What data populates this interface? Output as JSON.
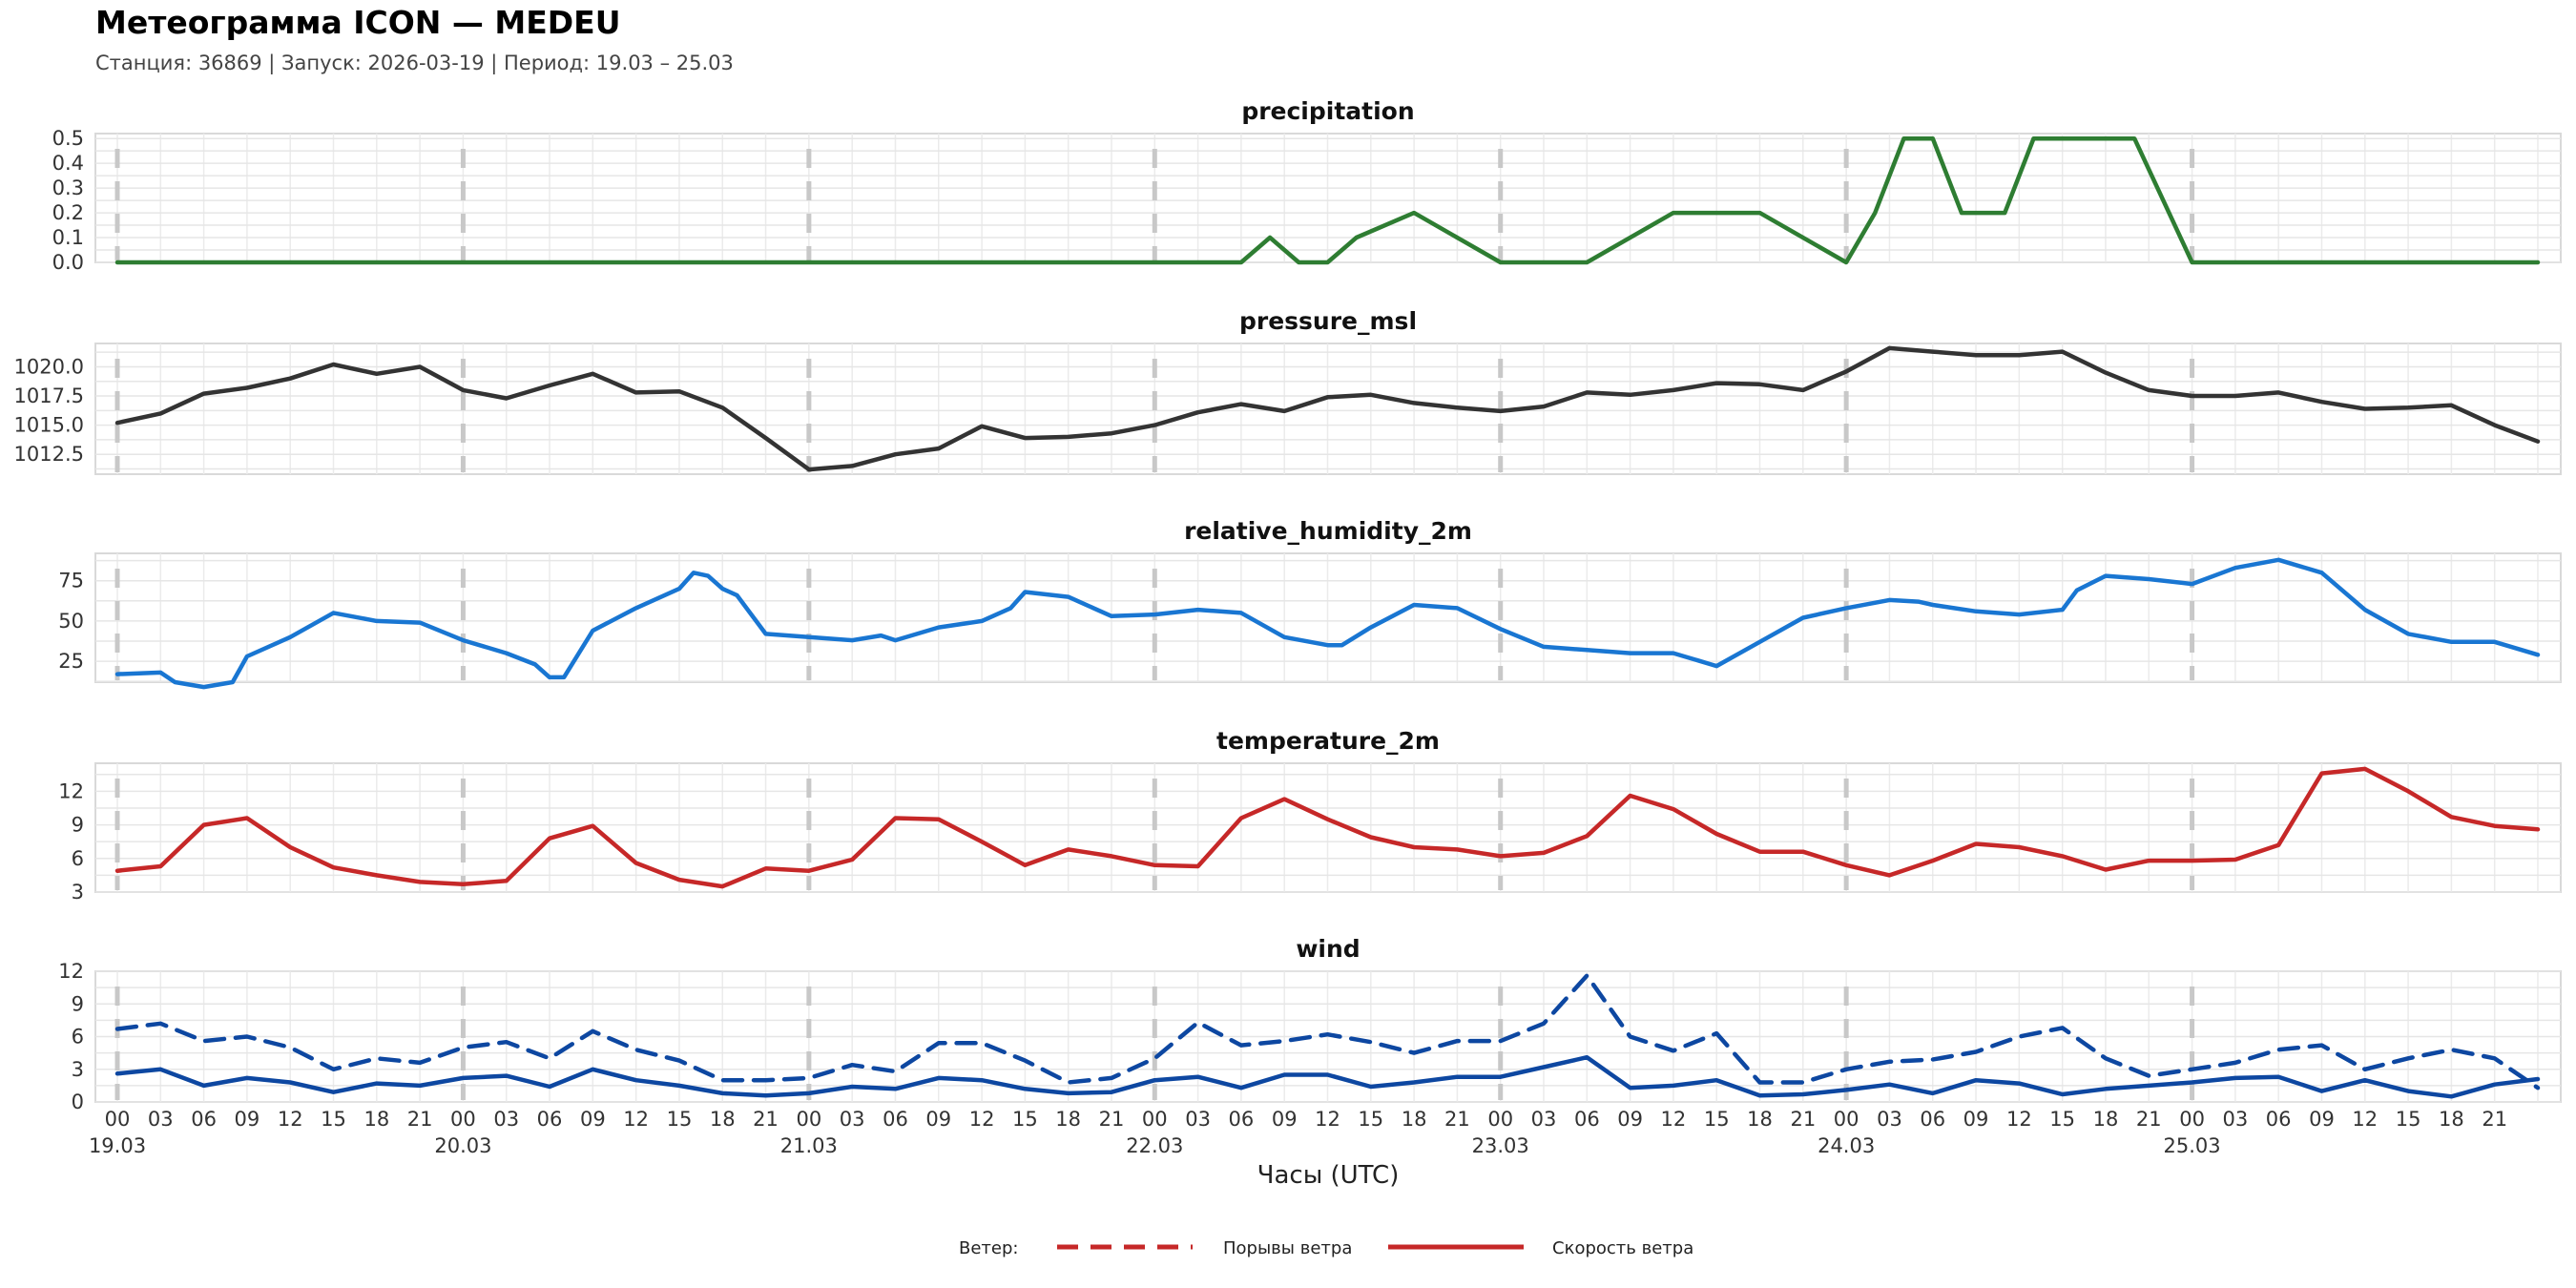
{
  "header": {
    "title": "Метеограмма ICON — MEDEU",
    "subtitle": "Станция: 36869  | Запуск: 2026-03-19  | Период: 19.03 – 25.03"
  },
  "x_axis": {
    "label": "Часы (UTC)",
    "hour_ticks": [
      "00",
      "03",
      "06",
      "09",
      "12",
      "15",
      "18",
      "21"
    ],
    "day_labels": [
      "19.03",
      "20.03",
      "21.03",
      "22.03",
      "23.03",
      "24.03",
      "25.03"
    ]
  },
  "legend": {
    "title": "Ветер:",
    "gust_label": "Порывы ветра",
    "speed_label": "Скорость ветра",
    "color": "#c62828"
  },
  "chart_data": [
    {
      "type": "line",
      "title": "precipitation",
      "color": "#2e7d32",
      "ylim": [
        0,
        0.52
      ],
      "yticks": [
        "0.0",
        "0.1",
        "0.2",
        "0.3",
        "0.4",
        "0.5"
      ],
      "x": [
        0,
        6,
        12,
        18,
        24,
        30,
        36,
        42,
        48,
        54,
        60,
        66,
        72,
        78,
        80,
        82,
        84,
        86,
        90,
        96,
        102,
        108,
        114,
        120,
        122,
        124,
        126,
        128,
        131,
        133,
        137,
        140,
        144,
        150,
        156,
        162,
        168
      ],
      "values": [
        0,
        0,
        0,
        0,
        0,
        0,
        0,
        0,
        0,
        0,
        0,
        0,
        0,
        0,
        0.1,
        0,
        0,
        0.1,
        0.2,
        0,
        0,
        0.2,
        0.2,
        0,
        0.2,
        0.5,
        0.5,
        0.2,
        0.2,
        0.5,
        0.5,
        0.5,
        0,
        0,
        0,
        0,
        0
      ]
    },
    {
      "type": "line",
      "title": "pressure_msl",
      "color": "#333333",
      "ylim": [
        1010.8,
        1022.0
      ],
      "yticks": [
        "1012.5",
        "1015.0",
        "1017.5",
        "1020.0"
      ],
      "x": [
        0,
        3,
        6,
        9,
        12,
        15,
        18,
        21,
        24,
        27,
        30,
        33,
        36,
        39,
        42,
        45,
        48,
        51,
        54,
        57,
        60,
        63,
        66,
        69,
        72,
        75,
        78,
        81,
        84,
        87,
        90,
        93,
        96,
        99,
        102,
        105,
        108,
        111,
        114,
        117,
        120,
        123,
        126,
        129,
        132,
        135,
        138,
        141,
        144,
        147,
        150,
        153,
        156,
        159,
        162,
        165,
        168
      ],
      "values": [
        1015.2,
        1016.0,
        1017.7,
        1018.2,
        1019.0,
        1020.2,
        1019.4,
        1020.0,
        1018.0,
        1017.3,
        1018.4,
        1019.4,
        1017.8,
        1017.9,
        1016.5,
        1013.9,
        1011.2,
        1011.5,
        1012.5,
        1013.0,
        1014.9,
        1013.9,
        1014.0,
        1014.3,
        1015.0,
        1016.1,
        1016.8,
        1016.2,
        1017.4,
        1017.6,
        1016.9,
        1016.5,
        1016.2,
        1016.6,
        1017.8,
        1017.6,
        1018.0,
        1018.6,
        1018.5,
        1018.0,
        1019.6,
        1021.6,
        1021.3,
        1021.0,
        1021.0,
        1021.3,
        1019.5,
        1018.0,
        1017.5,
        1017.5,
        1017.8,
        1017.0,
        1016.4,
        1016.5,
        1016.7,
        1015.0,
        1013.6
      ]
    },
    {
      "type": "line",
      "title": "relative_humidity_2m",
      "color": "#1976d2",
      "ylim": [
        12,
        92
      ],
      "yticks": [
        "25",
        "50",
        "75"
      ],
      "x": [
        0,
        3,
        4,
        6,
        8,
        9,
        12,
        15,
        18,
        21,
        24,
        27,
        29,
        30,
        31,
        33,
        36,
        39,
        40,
        41,
        42,
        43,
        45,
        48,
        51,
        53,
        54,
        57,
        60,
        62,
        63,
        66,
        69,
        72,
        75,
        78,
        81,
        84,
        85,
        87,
        90,
        93,
        96,
        99,
        102,
        105,
        108,
        111,
        114,
        117,
        120,
        123,
        125,
        126,
        129,
        132,
        135,
        136,
        138,
        141,
        144,
        147,
        150,
        153,
        156,
        159,
        162,
        165,
        168
      ],
      "values": [
        17,
        18,
        12,
        9,
        12,
        28,
        40,
        55,
        50,
        49,
        38,
        30,
        23,
        15,
        15,
        44,
        58,
        70,
        80,
        78,
        70,
        66,
        42,
        40,
        38,
        41,
        38,
        46,
        50,
        58,
        68,
        65,
        53,
        54,
        57,
        55,
        40,
        35,
        35,
        46,
        60,
        58,
        45,
        34,
        32,
        30,
        30,
        22,
        37,
        52,
        58,
        63,
        62,
        60,
        56,
        54,
        57,
        69,
        78,
        76,
        73,
        83,
        88,
        80,
        57,
        42,
        37,
        37,
        29
      ]
    },
    {
      "type": "line",
      "title": "temperature_2m",
      "color": "#c62828",
      "ylim": [
        3,
        14.5
      ],
      "yticks": [
        "3",
        "6",
        "9",
        "12"
      ],
      "x": [
        0,
        3,
        6,
        9,
        12,
        15,
        18,
        21,
        24,
        27,
        30,
        33,
        36,
        39,
        42,
        45,
        48,
        51,
        54,
        57,
        60,
        63,
        66,
        69,
        72,
        75,
        78,
        81,
        84,
        87,
        90,
        93,
        96,
        99,
        102,
        105,
        108,
        111,
        114,
        117,
        120,
        123,
        126,
        129,
        132,
        135,
        138,
        141,
        144,
        147,
        150,
        153,
        156,
        159,
        162,
        165,
        168
      ],
      "values": [
        4.9,
        5.3,
        9.0,
        9.6,
        7.0,
        5.2,
        4.5,
        3.9,
        3.7,
        4.0,
        7.8,
        8.9,
        5.6,
        4.1,
        3.5,
        5.1,
        4.9,
        5.9,
        9.6,
        9.5,
        7.5,
        5.4,
        6.8,
        6.2,
        5.4,
        5.3,
        9.6,
        11.3,
        9.5,
        7.9,
        7.0,
        6.8,
        6.2,
        6.5,
        8.0,
        11.6,
        10.4,
        8.2,
        6.6,
        6.6,
        5.4,
        4.5,
        5.8,
        7.3,
        7.0,
        6.2,
        5.0,
        5.8,
        5.8,
        5.9,
        7.2,
        13.6,
        14.0,
        12.0,
        9.7,
        8.9,
        8.6
      ]
    },
    {
      "type": "line",
      "title": "wind",
      "ylim": [
        0,
        12
      ],
      "yticks": [
        "0",
        "3",
        "6",
        "9",
        "12"
      ],
      "series": [
        {
          "name": "Порывы ветра",
          "style": "dashed",
          "color": "#0d47a1",
          "x": [
            0,
            3,
            6,
            9,
            12,
            15,
            18,
            21,
            24,
            27,
            30,
            33,
            36,
            39,
            42,
            45,
            48,
            51,
            54,
            57,
            60,
            63,
            66,
            69,
            72,
            75,
            78,
            81,
            84,
            87,
            90,
            93,
            96,
            99,
            102,
            105,
            108,
            111,
            114,
            117,
            120,
            123,
            126,
            129,
            132,
            135,
            138,
            141,
            144,
            147,
            150,
            153,
            156,
            159,
            162,
            165,
            168
          ],
          "values": [
            6.7,
            7.2,
            5.6,
            6.0,
            5.0,
            3.0,
            4.0,
            3.6,
            5.0,
            5.5,
            4.0,
            6.5,
            4.8,
            3.8,
            2.0,
            2.0,
            2.2,
            3.4,
            2.8,
            5.4,
            5.4,
            3.8,
            1.8,
            2.2,
            4.0,
            7.3,
            5.2,
            5.6,
            6.2,
            5.5,
            4.5,
            5.6,
            5.6,
            7.2,
            11.6,
            6.0,
            4.7,
            6.3,
            1.8,
            1.8,
            3.0,
            3.7,
            3.9,
            4.6,
            6.0,
            6.8,
            4.0,
            2.4,
            3.0,
            3.6,
            4.8,
            5.2,
            3.0,
            4.0,
            4.8,
            4.0,
            1.3
          ]
        },
        {
          "name": "Скорость ветра",
          "style": "solid",
          "color": "#0d47a1",
          "x": [
            0,
            3,
            6,
            9,
            12,
            15,
            18,
            21,
            24,
            27,
            30,
            33,
            36,
            39,
            42,
            45,
            48,
            51,
            54,
            57,
            60,
            63,
            66,
            69,
            72,
            75,
            78,
            81,
            84,
            87,
            90,
            93,
            96,
            99,
            102,
            105,
            108,
            111,
            114,
            117,
            120,
            123,
            126,
            129,
            132,
            135,
            138,
            141,
            144,
            147,
            150,
            153,
            156,
            159,
            162,
            165,
            168
          ],
          "values": [
            2.6,
            3.0,
            1.5,
            2.2,
            1.8,
            0.9,
            1.7,
            1.5,
            2.2,
            2.4,
            1.4,
            3.0,
            2.0,
            1.5,
            0.8,
            0.6,
            0.8,
            1.4,
            1.2,
            2.2,
            2.0,
            1.2,
            0.8,
            0.9,
            2.0,
            2.3,
            1.3,
            2.5,
            2.5,
            1.4,
            1.8,
            2.3,
            2.3,
            3.2,
            4.1,
            1.3,
            1.5,
            2.0,
            0.6,
            0.7,
            1.1,
            1.6,
            0.8,
            2.0,
            1.7,
            0.7,
            1.2,
            1.5,
            1.8,
            2.2,
            2.3,
            1.0,
            2.0,
            1.0,
            0.5,
            1.6,
            2.1
          ]
        }
      ]
    }
  ]
}
